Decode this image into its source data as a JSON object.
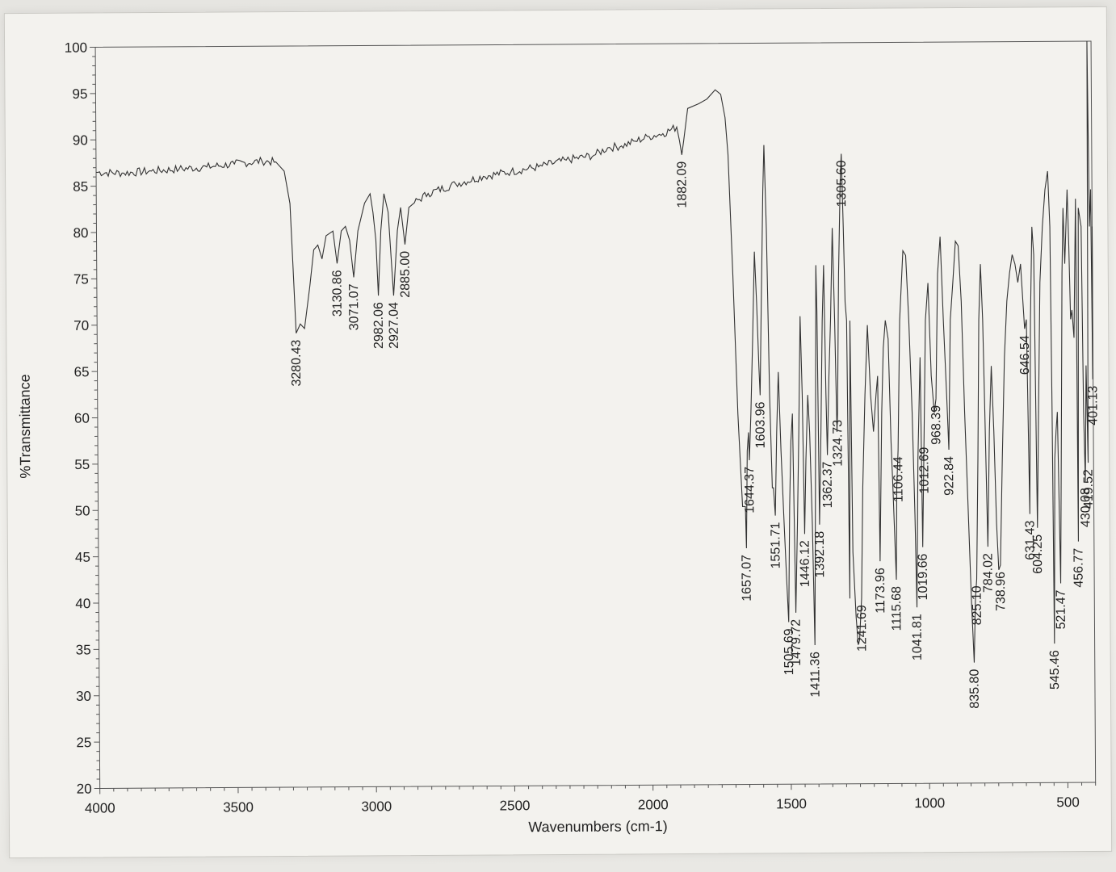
{
  "chart_data": {
    "type": "line",
    "title": "",
    "xlabel": "Wavenumbers (cm-1)",
    "ylabel": "%Transmittance",
    "xlim": [
      4000,
      400
    ],
    "ylim": [
      20,
      100
    ],
    "x_ticks": [
      "4000",
      "3500",
      "3000",
      "2500",
      "2000",
      "1500",
      "1000",
      "500"
    ],
    "y_ticks": [
      "100",
      "95",
      "90",
      "85",
      "80",
      "75",
      "70",
      "65",
      "60",
      "55",
      "50",
      "45",
      "40",
      "35",
      "30",
      "25",
      "20"
    ],
    "grid": false,
    "series": [
      {
        "points": [
          [
            4000,
            86.5
          ],
          [
            3900,
            86.4
          ],
          [
            3800,
            86.6
          ],
          [
            3700,
            86.8
          ],
          [
            3600,
            87.0
          ],
          [
            3500,
            87.3
          ],
          [
            3400,
            87.6
          ],
          [
            3350,
            87.5
          ],
          [
            3320,
            86.5
          ],
          [
            3300,
            83.0
          ],
          [
            3290,
            76.0
          ],
          [
            3280.43,
            69.0
          ],
          [
            3265,
            70.0
          ],
          [
            3250,
            69.5
          ],
          [
            3230,
            74.0
          ],
          [
            3215,
            78.0
          ],
          [
            3200,
            78.5
          ],
          [
            3185,
            77.0
          ],
          [
            3170,
            79.5
          ],
          [
            3145,
            80.0
          ],
          [
            3130.86,
            76.5
          ],
          [
            3115,
            80.0
          ],
          [
            3100,
            80.5
          ],
          [
            3085,
            79.0
          ],
          [
            3071.07,
            75.0
          ],
          [
            3055,
            80.0
          ],
          [
            3030,
            83.0
          ],
          [
            3010,
            84.0
          ],
          [
            3000,
            82.0
          ],
          [
            2990,
            79.0
          ],
          [
            2982.06,
            73.0
          ],
          [
            2972,
            80.0
          ],
          [
            2960,
            84.0
          ],
          [
            2945,
            82.0
          ],
          [
            2927.04,
            73.0
          ],
          [
            2912,
            80.0
          ],
          [
            2900,
            82.5
          ],
          [
            2885,
            78.5
          ],
          [
            2870,
            82.5
          ],
          [
            2850,
            83.0
          ],
          [
            2800,
            84.0
          ],
          [
            2700,
            85.0
          ],
          [
            2600,
            85.8
          ],
          [
            2500,
            86.3
          ],
          [
            2400,
            86.8
          ],
          [
            2300,
            87.5
          ],
          [
            2200,
            88.0
          ],
          [
            2150,
            88.8
          ],
          [
            2100,
            89.0
          ],
          [
            2050,
            89.5
          ],
          [
            2000,
            90.0
          ],
          [
            1950,
            90.3
          ],
          [
            1900,
            91.0
          ],
          [
            1890,
            89.5
          ],
          [
            1882.09,
            88.0
          ],
          [
            1875,
            89.5
          ],
          [
            1860,
            93.0
          ],
          [
            1820,
            93.5
          ],
          [
            1790,
            94.0
          ],
          [
            1760,
            95.0
          ],
          [
            1740,
            94.5
          ],
          [
            1725,
            92.0
          ],
          [
            1715,
            88.0
          ],
          [
            1700,
            75.0
          ],
          [
            1685,
            60.0
          ],
          [
            1670,
            50.0
          ],
          [
            1660,
            50.0
          ],
          [
            1657.07,
            45.5
          ],
          [
            1652,
            56.0
          ],
          [
            1647,
            58.0
          ],
          [
            1644.37,
            55.0
          ],
          [
            1638,
            60.0
          ],
          [
            1630,
            68.0
          ],
          [
            1622,
            77.5
          ],
          [
            1615,
            72.0
          ],
          [
            1608,
            65.0
          ],
          [
            1603.96,
            62.0
          ],
          [
            1598,
            72.0
          ],
          [
            1590,
            84.0
          ],
          [
            1585,
            89.0
          ],
          [
            1578,
            80.0
          ],
          [
            1570,
            62.0
          ],
          [
            1562,
            52.0
          ],
          [
            1558,
            52.0
          ],
          [
            1551.71,
            49.0
          ],
          [
            1545,
            58.0
          ],
          [
            1538,
            64.5
          ],
          [
            1530,
            56.0
          ],
          [
            1520,
            48.0
          ],
          [
            1512,
            42.0
          ],
          [
            1505.69,
            37.5
          ],
          [
            1500,
            50.0
          ],
          [
            1494,
            57.0
          ],
          [
            1488,
            60.0
          ],
          [
            1479.72,
            38.5
          ],
          [
            1472,
            48.0
          ],
          [
            1465,
            58.0
          ],
          [
            1458,
            70.5
          ],
          [
            1452,
            62.0
          ],
          [
            1446.12,
            47.0
          ],
          [
            1440,
            55.0
          ],
          [
            1432,
            62.0
          ],
          [
            1426,
            58.0
          ],
          [
            1418,
            48.0
          ],
          [
            1411.36,
            35.0
          ],
          [
            1406,
            52.0
          ],
          [
            1400,
            76.0
          ],
          [
            1397,
            71.0
          ],
          [
            1392.18,
            48.0
          ],
          [
            1385,
            58.0
          ],
          [
            1378,
            70.0
          ],
          [
            1372,
            76.0
          ],
          [
            1366,
            62.0
          ],
          [
            1362.37,
            55.5
          ],
          [
            1355,
            64.0
          ],
          [
            1348,
            70.0
          ],
          [
            1340,
            80.0
          ],
          [
            1333,
            70.0
          ],
          [
            1327,
            58.0
          ],
          [
            1324.73,
            60.0
          ],
          [
            1318,
            75.0
          ],
          [
            1310,
            85.0
          ],
          [
            1305.6,
            88.0
          ],
          [
            1300,
            80.0
          ],
          [
            1295,
            72.0
          ],
          [
            1290,
            70.0
          ],
          [
            1284,
            40.0
          ],
          [
            1278,
            70.0
          ],
          [
            1272,
            45.0
          ],
          [
            1262,
            38.0
          ],
          [
            1255,
            35.0
          ],
          [
            1250,
            35.5
          ],
          [
            1241.69,
            40.0
          ],
          [
            1235,
            52.0
          ],
          [
            1225,
            62.0
          ],
          [
            1215,
            69.5
          ],
          [
            1205,
            62.0
          ],
          [
            1195,
            58.0
          ],
          [
            1185,
            62.0
          ],
          [
            1179,
            64.0
          ],
          [
            1173.96,
            44.0
          ],
          [
            1165,
            60.0
          ],
          [
            1158,
            67.0
          ],
          [
            1150,
            70.0
          ],
          [
            1140,
            68.0
          ],
          [
            1132,
            57.0
          ],
          [
            1126,
            52.0
          ],
          [
            1115.68,
            42.0
          ],
          [
            1112,
            52.0
          ],
          [
            1106.44,
            56.0
          ],
          [
            1098,
            70.0
          ],
          [
            1085,
            77.5
          ],
          [
            1075,
            77.0
          ],
          [
            1065,
            70.0
          ],
          [
            1055,
            60.0
          ],
          [
            1047,
            49.0
          ],
          [
            1041.81,
            39.0
          ],
          [
            1035,
            55.0
          ],
          [
            1025,
            66.0
          ],
          [
            1019.66,
            45.5
          ],
          [
            1012.69,
            57.0
          ],
          [
            1005,
            70.0
          ],
          [
            995,
            74.0
          ],
          [
            985,
            64.0
          ],
          [
            975,
            60.0
          ],
          [
            968.39,
            61.5
          ],
          [
            960,
            75.0
          ],
          [
            950,
            79.0
          ],
          [
            940,
            70.0
          ],
          [
            930,
            62.0
          ],
          [
            922.84,
            56.0
          ],
          [
            915,
            70.0
          ],
          [
            905,
            74.0
          ],
          [
            895,
            78.5
          ],
          [
            885,
            78.0
          ],
          [
            875,
            72.0
          ],
          [
            865,
            60.0
          ],
          [
            855,
            50.0
          ],
          [
            845,
            40.0
          ],
          [
            835.8,
            33.0
          ],
          [
            830,
            40.0
          ],
          [
            825.1,
            42.0
          ],
          [
            818,
            55.0
          ],
          [
            812,
            70.0
          ],
          [
            805,
            76.0
          ],
          [
            798,
            70.0
          ],
          [
            792,
            60.0
          ],
          [
            784.02,
            45.5
          ],
          [
            776,
            58.0
          ],
          [
            768,
            65.0
          ],
          [
            760,
            58.0
          ],
          [
            752,
            48.0
          ],
          [
            745,
            43.0
          ],
          [
            738.96,
            43.5
          ],
          [
            730,
            55.0
          ],
          [
            720,
            66.0
          ],
          [
            710,
            72.0
          ],
          [
            700,
            75.0
          ],
          [
            690,
            77.0
          ],
          [
            680,
            76.0
          ],
          [
            670,
            74.0
          ],
          [
            660,
            76.0
          ],
          [
            646.54,
            69.0
          ],
          [
            640,
            70.0
          ],
          [
            631.43,
            49.0
          ],
          [
            625,
            70.0
          ],
          [
            618,
            80.0
          ],
          [
            612,
            77.0
          ],
          [
            604.25,
            47.5
          ],
          [
            598,
            60.0
          ],
          [
            590,
            74.0
          ],
          [
            580,
            80.0
          ],
          [
            570,
            84.0
          ],
          [
            560,
            86.0
          ],
          [
            553,
            80.0
          ],
          [
            549,
            60.0
          ],
          [
            545.46,
            35.0
          ],
          [
            540,
            55.0
          ],
          [
            535,
            58.0
          ],
          [
            530,
            60.0
          ],
          [
            521.47,
            41.5
          ],
          [
            515,
            60.0
          ],
          [
            510,
            75.0
          ],
          [
            505,
            82.0
          ],
          [
            500,
            76.0
          ],
          [
            495,
            80.0
          ],
          [
            490,
            84.0
          ],
          [
            485,
            78.0
          ],
          [
            480,
            70.0
          ],
          [
            475,
            71.0
          ],
          [
            468,
            68.0
          ],
          [
            460,
            83.0
          ],
          [
            456.77,
            46.0
          ],
          [
            450,
            82.0
          ],
          [
            440,
            80.0
          ],
          [
            435,
            60.0
          ],
          [
            430.08,
            52.5
          ],
          [
            425,
            65.0
          ],
          [
            419.52,
            54.5
          ],
          [
            415,
            100.0
          ],
          [
            410,
            80.0
          ],
          [
            405,
            84.0
          ],
          [
            401.13,
            63.5
          ],
          [
            400,
            80.0
          ]
        ]
      }
    ],
    "peak_labels": [
      {
        "text": "3280.43",
        "x": 3280.43
      },
      {
        "text": "3130.86",
        "x": 3130.86
      },
      {
        "text": "3071.07",
        "x": 3071.07
      },
      {
        "text": "2982.06",
        "x": 2982.06
      },
      {
        "text": "2927.04",
        "x": 2927.04
      },
      {
        "text": "2885.00",
        "x": 2885.0
      },
      {
        "text": "1882.09",
        "x": 1882.09
      },
      {
        "text": "1657.07",
        "x": 1657.07
      },
      {
        "text": "1644.37",
        "x": 1644.37
      },
      {
        "text": "1603.96",
        "x": 1603.96
      },
      {
        "text": "1551.71",
        "x": 1551.71
      },
      {
        "text": "1505.69",
        "x": 1505.69
      },
      {
        "text": "1479.72",
        "x": 1479.72
      },
      {
        "text": "1446.12",
        "x": 1446.12
      },
      {
        "text": "1411.36",
        "x": 1411.36
      },
      {
        "text": "1392.18",
        "x": 1392.18
      },
      {
        "text": "1362.37",
        "x": 1362.37
      },
      {
        "text": "1324.73",
        "x": 1324.73
      },
      {
        "text": "1305.60",
        "x": 1305.6
      },
      {
        "text": "1241.69",
        "x": 1241.69
      },
      {
        "text": "1173.96",
        "x": 1173.96
      },
      {
        "text": "1115.68",
        "x": 1115.68
      },
      {
        "text": "1106.44",
        "x": 1106.44
      },
      {
        "text": "1041.81",
        "x": 1041.81
      },
      {
        "text": "1019.66",
        "x": 1019.66
      },
      {
        "text": "1012.69",
        "x": 1012.69
      },
      {
        "text": "968.39",
        "x": 968.39
      },
      {
        "text": "922.84",
        "x": 922.84
      },
      {
        "text": "835.80",
        "x": 835.8
      },
      {
        "text": "825.10",
        "x": 825.1
      },
      {
        "text": "784.02",
        "x": 784.02
      },
      {
        "text": "738.96",
        "x": 738.96
      },
      {
        "text": "646.54",
        "x": 646.54
      },
      {
        "text": "631.43",
        "x": 631.43
      },
      {
        "text": "604.25",
        "x": 604.25
      },
      {
        "text": "545.46",
        "x": 545.46
      },
      {
        "text": "521.47",
        "x": 521.47
      },
      {
        "text": "456.77",
        "x": 456.77
      },
      {
        "text": "430.08",
        "x": 430.08
      },
      {
        "text": "419.52",
        "x": 419.52
      },
      {
        "text": "401.13",
        "x": 401.13
      }
    ]
  }
}
